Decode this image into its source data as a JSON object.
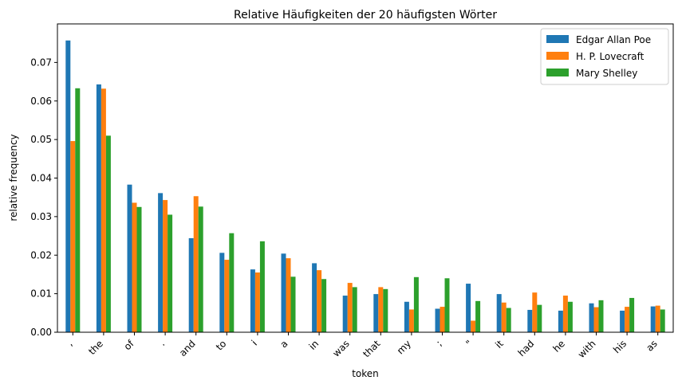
{
  "chart_data": {
    "type": "bar",
    "title": "Relative Häufigkeiten der 20 häufigsten Wörter",
    "xlabel": "token",
    "ylabel": "relative frequency",
    "ylim": [
      0,
      0.08
    ],
    "yticks": [
      0.0,
      0.01,
      0.02,
      0.03,
      0.04,
      0.05,
      0.06,
      0.07
    ],
    "ytick_labels": [
      "0.00",
      "0.01",
      "0.02",
      "0.03",
      "0.04",
      "0.05",
      "0.06",
      "0.07"
    ],
    "categories": [
      ",",
      "the",
      "of",
      ".",
      "and",
      "to",
      "i",
      "a",
      "in",
      "was",
      "that",
      "my",
      ";",
      "\"",
      "it",
      "had",
      "he",
      "with",
      "his",
      "as"
    ],
    "legend_position": "top-right",
    "grid": false,
    "series": [
      {
        "name": "Edgar Allan Poe",
        "color": "#1f77b4",
        "values": [
          0.0757,
          0.0643,
          0.0383,
          0.0361,
          0.0244,
          0.0206,
          0.0163,
          0.0204,
          0.0179,
          0.0095,
          0.0099,
          0.0079,
          0.0061,
          0.0126,
          0.0099,
          0.0058,
          0.0056,
          0.0075,
          0.0056,
          0.0067
        ]
      },
      {
        "name": "H. P. Lovecraft",
        "color": "#ff7f0e",
        "values": [
          0.0496,
          0.0632,
          0.0336,
          0.0343,
          0.0353,
          0.0188,
          0.0155,
          0.0192,
          0.0161,
          0.0128,
          0.0117,
          0.0059,
          0.0066,
          0.003,
          0.0077,
          0.0103,
          0.0095,
          0.0065,
          0.0066,
          0.0069
        ]
      },
      {
        "name": "Mary Shelley",
        "color": "#2ca02c",
        "values": [
          0.0633,
          0.051,
          0.0325,
          0.0305,
          0.0326,
          0.0257,
          0.0236,
          0.0144,
          0.0138,
          0.0117,
          0.0112,
          0.0143,
          0.014,
          0.0081,
          0.0063,
          0.0071,
          0.0079,
          0.0083,
          0.0089,
          0.0059
        ]
      }
    ]
  }
}
